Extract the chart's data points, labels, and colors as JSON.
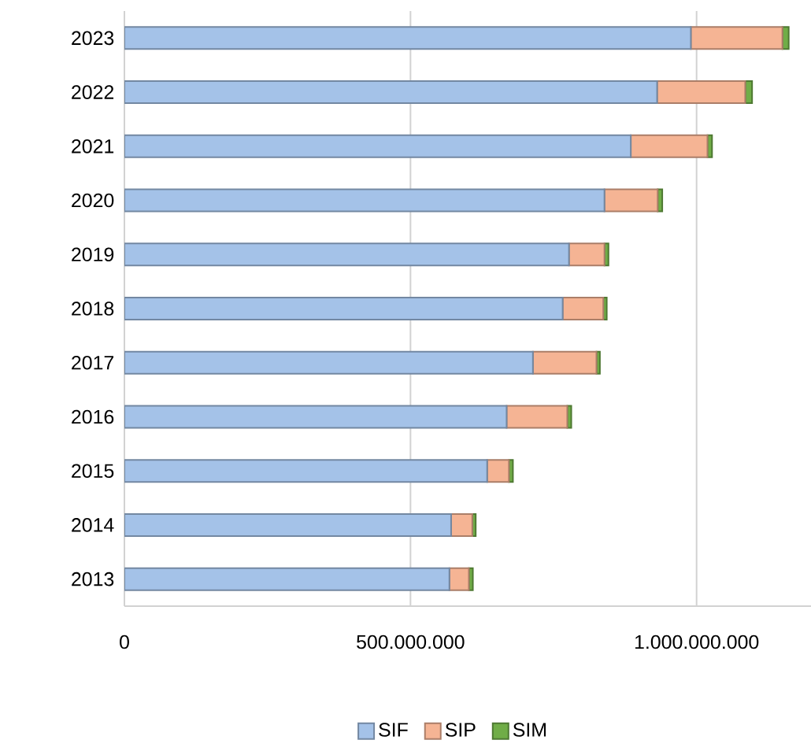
{
  "chart_data": {
    "type": "bar",
    "orientation": "horizontal",
    "stacked": true,
    "categories": [
      "2023",
      "2022",
      "2021",
      "2020",
      "2019",
      "2018",
      "2017",
      "2016",
      "2015",
      "2014",
      "2013"
    ],
    "series": [
      {
        "name": "SIF",
        "color": "#a4c2e8",
        "values": [
          990000000,
          931000000,
          885000000,
          839000000,
          777000000,
          766000000,
          714000000,
          668000000,
          634000000,
          571000000,
          568000000
        ]
      },
      {
        "name": "SIP",
        "color": "#f5b494",
        "values": [
          160000000,
          154000000,
          134000000,
          93000000,
          62000000,
          71000000,
          111000000,
          106000000,
          38000000,
          37000000,
          34000000
        ]
      },
      {
        "name": "SIM",
        "color": "#70ad47",
        "values": [
          11000000,
          12000000,
          8000000,
          8000000,
          7000000,
          6000000,
          6000000,
          7000000,
          7000000,
          6000000,
          7000000
        ]
      }
    ],
    "xlim": [
      0,
      1200000000
    ],
    "xticks": [
      0,
      {
        "value": 500000000,
        "label": "500.000.000"
      },
      {
        "value": 1000000000,
        "label": "1.000.000.000"
      }
    ],
    "grid": "x",
    "legend": "bottom"
  }
}
